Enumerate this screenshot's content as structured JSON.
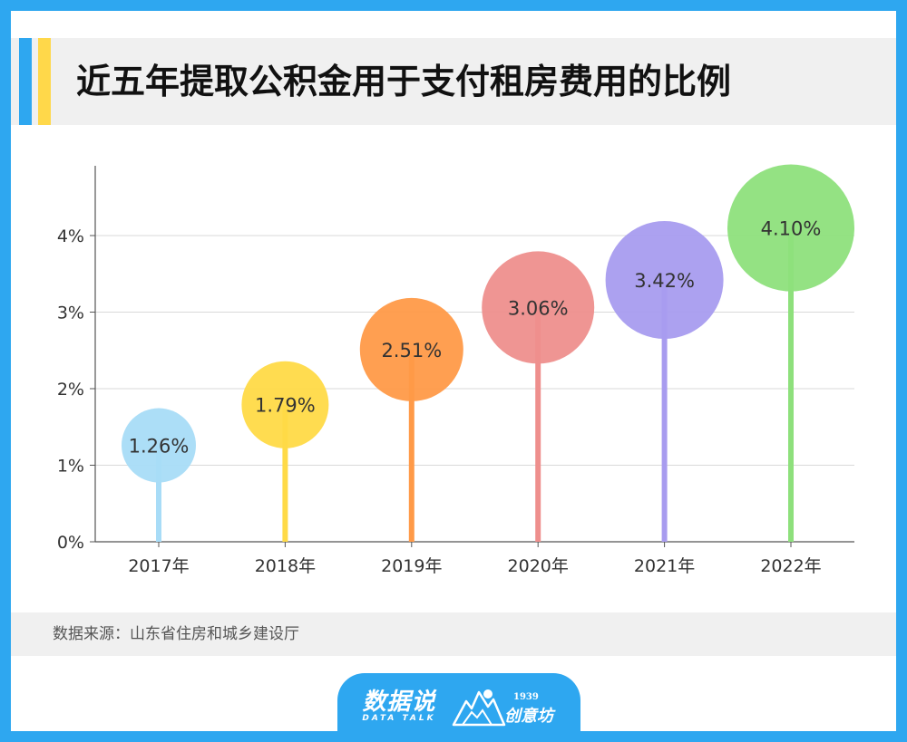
{
  "title": "近五年提取公积金用于支付租房费用的比例",
  "source": "数据来源：山东省住房和城乡建设厅",
  "branding": {
    "primary_logo": "数据说",
    "primary_logo_sub": "DATA TALK",
    "secondary_logo_year": "1939",
    "secondary_logo_name": "创意坊"
  },
  "colors": {
    "frame": "#2ea7f0",
    "accent_yellow": "#ffd84a"
  },
  "chart_data": {
    "type": "lollipop",
    "categories": [
      "2017年",
      "2018年",
      "2019年",
      "2020年",
      "2021年",
      "2022年"
    ],
    "values": [
      1.26,
      1.79,
      2.51,
      3.06,
      3.42,
      4.1
    ],
    "labels": [
      "1.26%",
      "1.79%",
      "2.51%",
      "3.06%",
      "3.42%",
      "4.10%"
    ],
    "colors": [
      "#a8dcf7",
      "#ffda47",
      "#ff9a48",
      "#ee8f8d",
      "#a89cef",
      "#8ee07c"
    ],
    "yticks": [
      0,
      1,
      2,
      3,
      4
    ],
    "ytick_labels": [
      "0%",
      "1%",
      "2%",
      "3%",
      "4%"
    ],
    "ylim": [
      0,
      5
    ],
    "grid": true,
    "xlabel": "",
    "ylabel": ""
  }
}
